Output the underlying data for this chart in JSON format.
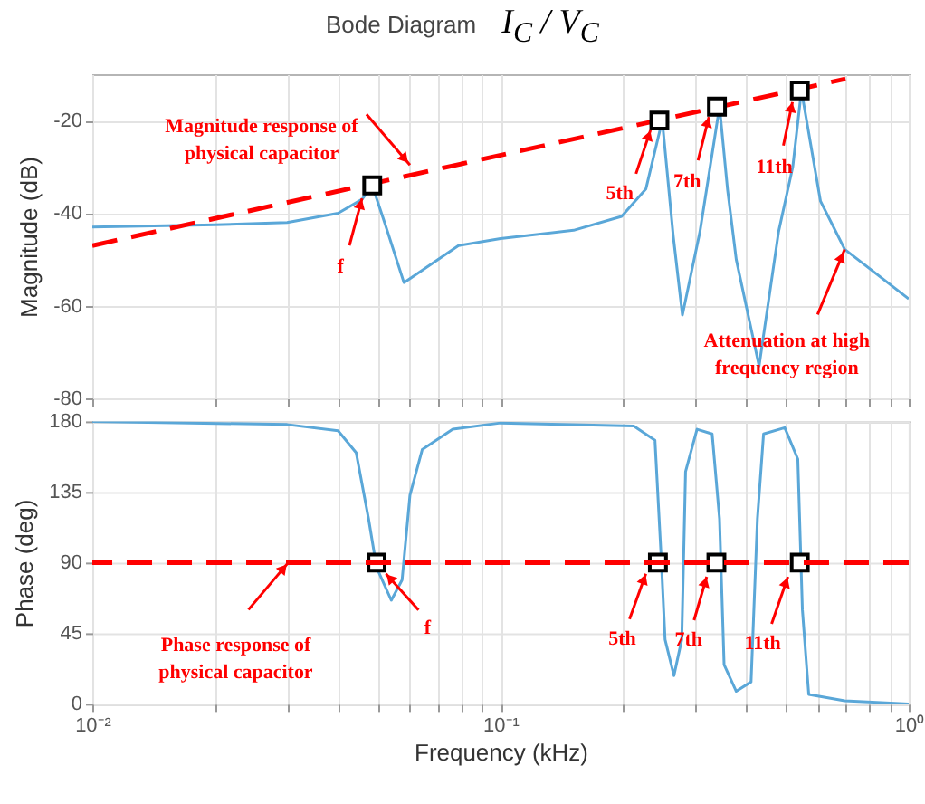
{
  "chart_data": [
    {
      "type": "line",
      "title": "Bode Diagram",
      "subtitle": "I$_{C}$ / V$_{C}$",
      "ylabel": "Magnitude (dB)",
      "log": "x",
      "grid": true,
      "tick_labels": "y",
      "xlim": [
        0.01,
        1
      ],
      "xticks": [
        {
          "value": 0.01,
          "label": null
        },
        {
          "value": 0.02,
          "label": null
        },
        {
          "value": 0.03,
          "label": null
        },
        {
          "value": 0.04,
          "label": null
        },
        {
          "value": 0.05,
          "label": null
        },
        {
          "value": 0.06,
          "label": null
        },
        {
          "value": 0.07,
          "label": null
        },
        {
          "value": 0.08,
          "label": null
        },
        {
          "value": 0.09,
          "label": null
        },
        {
          "value": 0.1,
          "label": null
        },
        {
          "value": 0.2,
          "label": null
        },
        {
          "value": 0.3,
          "label": null
        },
        {
          "value": 0.4,
          "label": null
        },
        {
          "value": 0.5,
          "label": null
        },
        {
          "value": 0.6,
          "label": null
        },
        {
          "value": 0.7,
          "label": null
        },
        {
          "value": 0.8,
          "label": null
        },
        {
          "value": 0.9,
          "label": null
        },
        {
          "value": 1,
          "label": null
        }
      ],
      "ylim": [
        -80,
        -10
      ],
      "yticks": [
        -80,
        -60,
        -40,
        -20
      ],
      "series": [
        {
          "type": "line",
          "color": "#5aa7d8",
          "x": [
            0.01,
            0.02,
            0.03,
            0.04,
            0.0458,
            0.0485,
            0.052,
            0.058,
            0.0789,
            0.1,
            0.151,
            0.198,
            0.227,
            0.249,
            0.265,
            0.279,
            0.308,
            0.344,
            0.36,
            0.378,
            0.43,
            0.48,
            0.52,
            0.546,
            0.608,
            0.697,
            1
          ],
          "values": [
            -43,
            -42.5,
            -42,
            -40,
            -37,
            -34,
            -42,
            -55,
            -47,
            -45.5,
            -43.7,
            -40.7,
            -34.8,
            -20,
            -45,
            -62,
            -44,
            -17,
            -35,
            -50,
            -73,
            -44,
            -30,
            -13.5,
            -37.4,
            -47.8,
            -58.5
          ]
        },
        {
          "type": "line",
          "line_style": "dashed",
          "color": "#ff0000",
          "x": [
            0.01,
            0.7
          ],
          "values": [
            -47,
            -11
          ]
        },
        {
          "type": "scatter",
          "marker": "square",
          "color": "#000000",
          "x": [
            0.0485,
            0.245,
            0.339,
            0.541
          ],
          "values": [
            -34,
            -20,
            -17,
            -13.5
          ]
        }
      ],
      "annotations": [
        {
          "text": "Magnitude response of physical capacitor",
          "x": 0.06,
          "y": -29.6
        },
        {
          "text": "f",
          "x": 0.0458,
          "y": -36.8
        },
        {
          "text": "5th",
          "x": 0.233,
          "y": -22.1
        },
        {
          "text": "7th",
          "x": 0.324,
          "y": -19.2
        },
        {
          "text": "11th",
          "x": 0.519,
          "y": -16
        },
        {
          "text": "Attenuation at high frequency region",
          "x": 0.697,
          "y": -47.8
        }
      ]
    },
    {
      "type": "line",
      "xlabel": "Frequency (kHz)",
      "ylabel": "Phase (deg)",
      "log": "x",
      "grid": true,
      "xlim": [
        0.01,
        1
      ],
      "xticks": [
        {
          "value": 0.01,
          "label": "10⁻²"
        },
        {
          "value": 0.02,
          "label": null
        },
        {
          "value": 0.03,
          "label": null
        },
        {
          "value": 0.04,
          "label": null
        },
        {
          "value": 0.05,
          "label": null
        },
        {
          "value": 0.06,
          "label": null
        },
        {
          "value": 0.07,
          "label": null
        },
        {
          "value": 0.08,
          "label": null
        },
        {
          "value": 0.09,
          "label": null
        },
        {
          "value": 0.1,
          "label": "10⁻¹"
        },
        {
          "value": 0.2,
          "label": null
        },
        {
          "value": 0.3,
          "label": null
        },
        {
          "value": 0.4,
          "label": null
        },
        {
          "value": 0.5,
          "label": null
        },
        {
          "value": 0.6,
          "label": null
        },
        {
          "value": 0.7,
          "label": null
        },
        {
          "value": 0.8,
          "label": null
        },
        {
          "value": 0.9,
          "label": null
        },
        {
          "value": 1,
          "label": "10⁰"
        }
      ],
      "ylim": [
        0,
        180
      ],
      "yticks": [
        0,
        45,
        90,
        135,
        180
      ],
      "series": [
        {
          "type": "line",
          "color": "#5aa7d8",
          "x": [
            0.01,
            0.03,
            0.04,
            0.0443,
            0.0475,
            0.0497,
            0.054,
            0.0574,
            0.06,
            0.0643,
            0.0764,
            0.1,
            0.212,
            0.239,
            0.247,
            0.253,
            0.266,
            0.278,
            0.284,
            0.303,
            0.33,
            0.344,
            0.353,
            0.378,
            0.411,
            0.426,
            0.441,
            0.497,
            0.535,
            0.549,
            0.569,
            0.697,
            1
          ],
          "values": [
            180,
            178,
            174,
            160,
            118,
            87,
            66,
            79,
            133,
            162,
            175,
            179,
            177,
            168,
            98,
            41,
            18,
            41,
            148,
            175,
            172,
            118,
            25,
            8,
            14,
            118,
            172,
            176,
            156,
            60,
            6,
            2,
            0
          ]
        },
        {
          "type": "scatter",
          "marker": "square",
          "color": "#000000",
          "x": [
            0.0497,
            0.243,
            0.338,
            0.541
          ],
          "values": [
            90,
            90,
            90,
            90
          ]
        }
      ],
      "ref_lines": [
        {
          "axis": "y",
          "value": 90,
          "color": "#ff0000",
          "line_style": "dashed"
        }
      ],
      "annotations": [
        {
          "text": "Phase response of physical capacitor",
          "x": 0.0302,
          "y": 90
        },
        {
          "text": "f",
          "x": 0.0524,
          "y": 82.9
        },
        {
          "text": "5th",
          "x": 0.227,
          "y": 82.9
        },
        {
          "text": "7th",
          "x": 0.32,
          "y": 81
        },
        {
          "text": "11th",
          "x": 0.506,
          "y": 81
        }
      ]
    }
  ]
}
